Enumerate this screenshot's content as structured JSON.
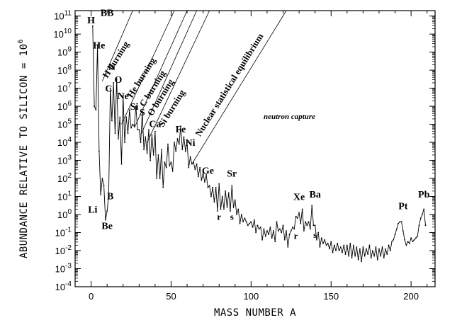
{
  "chart_data": {
    "type": "line",
    "title": "",
    "xlabel": "MASS NUMBER A",
    "ylabel": "ABUNDANCE RELATIVE TO SILICON = 10^6",
    "ylabel_parts": {
      "text": "ABUNDANCE RELATIVE TO SILICON = 10",
      "sup": "6"
    },
    "xlim": [
      -10,
      215
    ],
    "ylim_log10": [
      -4,
      11.3
    ],
    "y_scale": "log",
    "grid": false,
    "x_ticks": [
      0,
      50,
      100,
      150,
      200
    ],
    "x_tick_labels": [
      "0",
      "50",
      "100",
      "150",
      "200"
    ],
    "y_tick_exponents": [
      -4,
      -3,
      -2,
      -1,
      0,
      1,
      2,
      3,
      4,
      5,
      6,
      7,
      8,
      9,
      10,
      11
    ],
    "y_tick_labels": [
      "10^-4",
      "10^-3",
      "10^-2",
      "10^-1",
      "10^0",
      "10^1",
      "10^2",
      "10^3",
      "10^4",
      "10^5",
      "10^6",
      "10^7",
      "10^8",
      "10^9",
      "10^10",
      "10^11"
    ],
    "series": [
      {
        "points": [
          [
            1,
            10.45
          ],
          [
            2,
            6.0
          ],
          [
            3,
            5.8
          ],
          [
            4,
            9.4
          ],
          [
            5,
            3.5
          ],
          [
            6,
            1.1
          ],
          [
            7,
            2.0
          ],
          [
            8,
            1.6
          ],
          [
            9,
            -0.3
          ],
          [
            10,
            0.2
          ],
          [
            11,
            1.1
          ],
          [
            12,
            7.0
          ],
          [
            13,
            5.2
          ],
          [
            14,
            7.3
          ],
          [
            15,
            4.5
          ],
          [
            16,
            7.5
          ],
          [
            17,
            4.2
          ],
          [
            18,
            5.4
          ],
          [
            19,
            2.8
          ],
          [
            20,
            6.6
          ],
          [
            21,
            4.0
          ],
          [
            22,
            5.4
          ],
          [
            23,
            4.5
          ],
          [
            24,
            5.8
          ],
          [
            25,
            4.8
          ],
          [
            26,
            5.0
          ],
          [
            27,
            4.9
          ],
          [
            28,
            6.0
          ],
          [
            29,
            4.7
          ],
          [
            30,
            4.7
          ],
          [
            31,
            4.0
          ],
          [
            32,
            5.7
          ],
          [
            33,
            3.6
          ],
          [
            34,
            4.3
          ],
          [
            35,
            3.4
          ],
          [
            36,
            4.7
          ],
          [
            37,
            3.0
          ],
          [
            38,
            4.4
          ],
          [
            39,
            3.3
          ],
          [
            40,
            4.6
          ],
          [
            41,
            2.0
          ],
          [
            42,
            3.3
          ],
          [
            43,
            2.0
          ],
          [
            44,
            3.6
          ],
          [
            45,
            1.5
          ],
          [
            46,
            2.9
          ],
          [
            47,
            2.6
          ],
          [
            48,
            3.9
          ],
          [
            49,
            2.7
          ],
          [
            50,
            2.9
          ],
          [
            51,
            2.4
          ],
          [
            52,
            4.0
          ],
          [
            53,
            3.5
          ],
          [
            54,
            4.2
          ],
          [
            55,
            3.9
          ],
          [
            56,
            4.9
          ],
          [
            57,
            3.6
          ],
          [
            58,
            4.3
          ],
          [
            59,
            3.5
          ],
          [
            60,
            4.0
          ],
          [
            61,
            2.6
          ],
          [
            62,
            3.2
          ],
          [
            63,
            2.8
          ],
          [
            64,
            2.9
          ],
          [
            65,
            2.5
          ],
          [
            66,
            2.8
          ],
          [
            67,
            2.1
          ],
          [
            68,
            2.6
          ],
          [
            69,
            1.9
          ],
          [
            70,
            2.3
          ],
          [
            71,
            1.8
          ],
          [
            72,
            2.2
          ],
          [
            73,
            1.5
          ],
          [
            74,
            1.6
          ],
          [
            75,
            1.0
          ],
          [
            76,
            1.5
          ],
          [
            77,
            0.7
          ],
          [
            78,
            1.5
          ],
          [
            79,
            0.2
          ],
          [
            80,
            1.7
          ],
          [
            81,
            0.3
          ],
          [
            82,
            1.0
          ],
          [
            83,
            0.3
          ],
          [
            84,
            1.3
          ],
          [
            85,
            0.4
          ],
          [
            86,
            1.2
          ],
          [
            87,
            0.2
          ],
          [
            88,
            1.6
          ],
          [
            89,
            0.4
          ],
          [
            90,
            0.8
          ],
          [
            91,
            0.0
          ],
          [
            92,
            0.3
          ],
          [
            93,
            -0.5
          ],
          [
            94,
            0.0
          ],
          [
            95,
            -0.4
          ],
          [
            96,
            -0.2
          ],
          [
            97,
            -0.4
          ],
          [
            98,
            -0.6
          ],
          [
            99,
            -0.5
          ],
          [
            100,
            -0.4
          ],
          [
            101,
            -0.7
          ],
          [
            102,
            -0.3
          ],
          [
            103,
            -1.0
          ],
          [
            104,
            -0.6
          ],
          [
            105,
            -0.8
          ],
          [
            106,
            -0.7
          ],
          [
            107,
            -1.4
          ],
          [
            108,
            -0.8
          ],
          [
            109,
            -1.2
          ],
          [
            110,
            -0.9
          ],
          [
            111,
            -1.1
          ],
          [
            112,
            -0.7
          ],
          [
            113,
            -1.3
          ],
          [
            114,
            -0.9
          ],
          [
            115,
            -1.5
          ],
          [
            116,
            -0.4
          ],
          [
            117,
            -0.9
          ],
          [
            118,
            -0.8
          ],
          [
            119,
            -1.0
          ],
          [
            120,
            -0.6
          ],
          [
            121,
            -1.4
          ],
          [
            122,
            -0.9
          ],
          [
            123,
            -1.8
          ],
          [
            124,
            -1.1
          ],
          [
            125,
            -0.9
          ],
          [
            126,
            -0.7
          ],
          [
            127,
            -0.8
          ],
          [
            128,
            -0.1
          ],
          [
            129,
            -0.2
          ],
          [
            130,
            0.1
          ],
          [
            131,
            -0.5
          ],
          [
            132,
            0.3
          ],
          [
            133,
            -0.9
          ],
          [
            134,
            -0.4
          ],
          [
            135,
            -0.6
          ],
          [
            136,
            -0.4
          ],
          [
            137,
            -0.8
          ],
          [
            138,
            0.5
          ],
          [
            139,
            -0.6
          ],
          [
            140,
            -0.6
          ],
          [
            141,
            -1.4
          ],
          [
            142,
            -1.0
          ],
          [
            143,
            -1.8
          ],
          [
            144,
            -1.3
          ],
          [
            145,
            -1.6
          ],
          [
            146,
            -1.4
          ],
          [
            147,
            -1.7
          ],
          [
            148,
            -1.6
          ],
          [
            149,
            -1.9
          ],
          [
            150,
            -1.5
          ],
          [
            151,
            -2.1
          ],
          [
            152,
            -1.7
          ],
          [
            153,
            -2.0
          ],
          [
            154,
            -1.6
          ],
          [
            155,
            -2.0
          ],
          [
            156,
            -1.8
          ],
          [
            157,
            -2.1
          ],
          [
            158,
            -1.7
          ],
          [
            159,
            -2.2
          ],
          [
            160,
            -1.7
          ],
          [
            161,
            -2.3
          ],
          [
            162,
            -1.6
          ],
          [
            163,
            -2.4
          ],
          [
            164,
            -1.7
          ],
          [
            165,
            -2.3
          ],
          [
            166,
            -1.8
          ],
          [
            167,
            -2.5
          ],
          [
            168,
            -1.9
          ],
          [
            169,
            -2.6
          ],
          [
            170,
            -1.8
          ],
          [
            171,
            -2.3
          ],
          [
            172,
            -1.9
          ],
          [
            173,
            -2.2
          ],
          [
            174,
            -1.7
          ],
          [
            175,
            -2.4
          ],
          [
            176,
            -2.0
          ],
          [
            177,
            -2.3
          ],
          [
            178,
            -1.8
          ],
          [
            179,
            -2.5
          ],
          [
            180,
            -1.9
          ],
          [
            181,
            -2.3
          ],
          [
            182,
            -1.8
          ],
          [
            183,
            -2.4
          ],
          [
            184,
            -1.9
          ],
          [
            185,
            -2.2
          ],
          [
            186,
            -1.7
          ],
          [
            187,
            -2.0
          ],
          [
            188,
            -1.5
          ],
          [
            189,
            -1.4
          ],
          [
            190,
            -1.1
          ],
          [
            191,
            -0.8
          ],
          [
            192,
            -0.5
          ],
          [
            193,
            -0.4
          ],
          [
            194,
            -0.4
          ],
          [
            195,
            -0.9
          ],
          [
            196,
            -1.4
          ],
          [
            197,
            -1.7
          ],
          [
            198,
            -1.5
          ],
          [
            199,
            -1.6
          ],
          [
            200,
            -1.3
          ],
          [
            201,
            -1.5
          ],
          [
            202,
            -1.4
          ],
          [
            203,
            -1.3
          ],
          [
            204,
            -1.2
          ],
          [
            205,
            -0.6
          ],
          [
            206,
            -0.2
          ],
          [
            207,
            0.0
          ],
          [
            208,
            0.3
          ],
          [
            209,
            -0.6
          ]
        ]
      }
    ],
    "element_labels": [
      {
        "text": "H",
        "x": 0,
        "y": 10.6
      },
      {
        "text": "He",
        "x": 5,
        "y": 9.2
      },
      {
        "text": "N",
        "x": 13,
        "y": 8.0
      },
      {
        "text": "C",
        "x": 11,
        "y": 6.8
      },
      {
        "text": "O",
        "x": 17,
        "y": 7.3
      },
      {
        "text": "Ne",
        "x": 20,
        "y": 6.4
      },
      {
        "text": "Si",
        "x": 27,
        "y": 5.8
      },
      {
        "text": "S",
        "x": 32,
        "y": 5.5
      },
      {
        "text": "Ca",
        "x": 40,
        "y": 4.85
      },
      {
        "text": "Fe",
        "x": 56,
        "y": 4.55
      },
      {
        "text": "Ni",
        "x": 62,
        "y": 3.8
      },
      {
        "text": "Ge",
        "x": 73,
        "y": 2.25
      },
      {
        "text": "Sr",
        "x": 88,
        "y": 2.1
      },
      {
        "text": "Xe",
        "x": 130,
        "y": 0.8
      },
      {
        "text": "Ba",
        "x": 140,
        "y": 0.95
      },
      {
        "text": "Pt",
        "x": 195,
        "y": 0.3
      },
      {
        "text": "Pb",
        "x": 208,
        "y": 0.95
      },
      {
        "text": "Li",
        "x": 1,
        "y": 0.1
      },
      {
        "text": "B",
        "x": 12,
        "y": 0.85
      },
      {
        "text": "Be",
        "x": 10,
        "y": -0.8
      },
      {
        "text": "BB",
        "x": 10,
        "y": 11.0
      }
    ],
    "process_labels": [
      {
        "text": "H burning",
        "x": 17,
        "y": 8.5
      },
      {
        "text": "He burning",
        "x": 33,
        "y": 7.5
      },
      {
        "text": "C burning",
        "x": 40,
        "y": 6.9
      },
      {
        "text": "O burning",
        "x": 45,
        "y": 6.4
      },
      {
        "text": "Si burning",
        "x": 52,
        "y": 5.8
      },
      {
        "text": "Nuclear statistical equilibrium",
        "x": 88,
        "y": 7.1
      },
      {
        "text": "neutron   capture",
        "x": 124,
        "y": 5.3
      }
    ],
    "nucleosynthesis_labels": [
      {
        "text": "r",
        "x": 80,
        "y": -0.3
      },
      {
        "text": "s",
        "x": 88,
        "y": -0.3
      },
      {
        "text": "r",
        "x": 128,
        "y": -1.35
      },
      {
        "text": "s",
        "x": 140,
        "y": -1.3
      }
    ]
  }
}
